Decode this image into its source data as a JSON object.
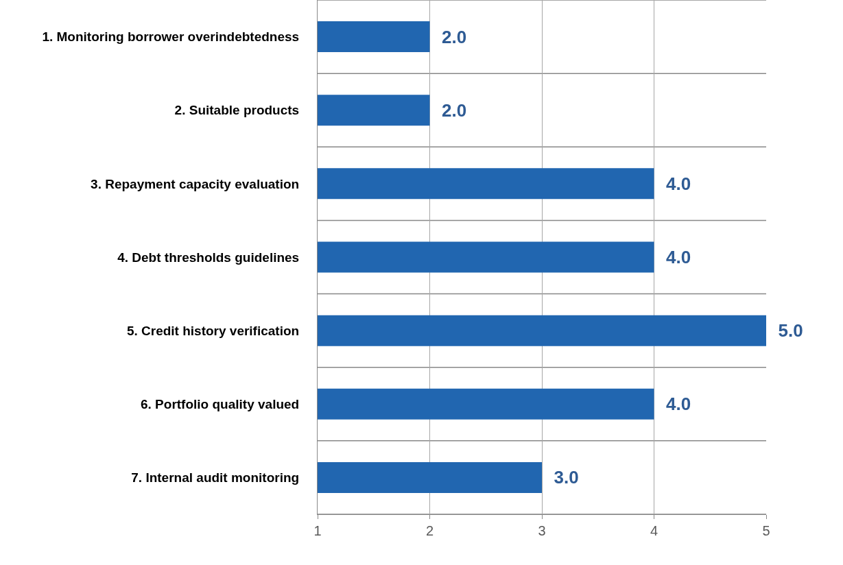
{
  "chart_data": {
    "type": "bar",
    "orientation": "horizontal",
    "categories": [
      "1. Monitoring borrower overindebtedness",
      "2. Suitable products",
      "3. Repayment capacity evaluation",
      "4. Debt thresholds guidelines",
      "5. Credit history verification",
      "6. Portfolio quality valued",
      "7. Internal audit monitoring"
    ],
    "values": [
      2,
      2,
      4,
      4,
      5,
      4,
      3
    ],
    "value_labels": [
      "2.0",
      "2.0",
      "4.0",
      "4.0",
      "5.0",
      "4.0",
      "3.0"
    ],
    "color": "#2166b0",
    "xlim": [
      1,
      5
    ],
    "xticks": [
      1,
      2,
      3,
      4,
      5
    ],
    "grid": true
  }
}
